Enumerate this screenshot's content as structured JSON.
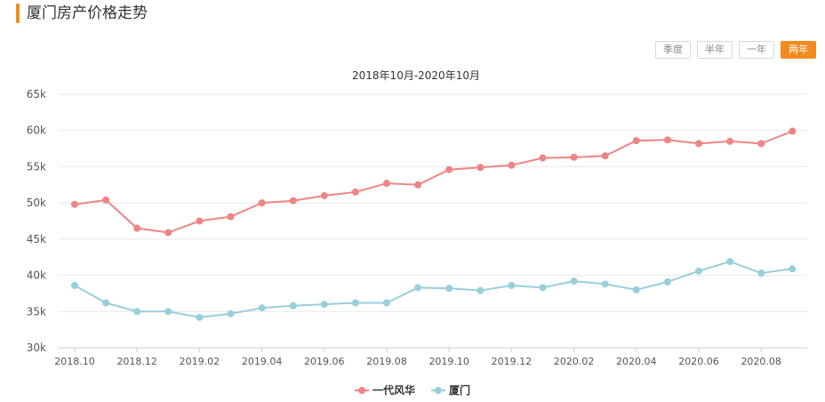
{
  "header": {
    "title": "厦门房产价格走势"
  },
  "range_buttons": [
    {
      "label": "季度",
      "active": false
    },
    {
      "label": "半年",
      "active": false
    },
    {
      "label": "一年",
      "active": false
    },
    {
      "label": "两年",
      "active": true
    }
  ],
  "colors": {
    "accent": "#f08c1e",
    "series1": "#ee8585",
    "series2": "#98cfdc",
    "grid": "#e8e8e8",
    "axis": "#cccccc"
  },
  "chart_data": {
    "type": "line",
    "title": "2018年10月-2020年10月",
    "xlabel": "",
    "ylabel": "",
    "x_tick_labels": [
      "2018.10",
      "2018.12",
      "2019.02",
      "2019.04",
      "2019.06",
      "2019.08",
      "2019.10",
      "2019.12",
      "2020.02",
      "2020.04",
      "2020.06",
      "2020.08"
    ],
    "y_tick_labels": [
      "30k",
      "35k",
      "40k",
      "45k",
      "50k",
      "55k",
      "60k",
      "65k"
    ],
    "ylim": [
      30000,
      65000
    ],
    "x": [
      "2018.10",
      "2018.11",
      "2018.12",
      "2019.01",
      "2019.02",
      "2019.03",
      "2019.04",
      "2019.05",
      "2019.06",
      "2019.07",
      "2019.08",
      "2019.09",
      "2019.10",
      "2019.11",
      "2019.12",
      "2020.01",
      "2020.02",
      "2020.03",
      "2020.04",
      "2020.05",
      "2020.06",
      "2020.07",
      "2020.08",
      "2020.09"
    ],
    "series": [
      {
        "name": "一代风华",
        "values": [
          49800,
          50400,
          46500,
          45900,
          47500,
          48100,
          50000,
          50300,
          51000,
          51500,
          52700,
          52500,
          54600,
          54900,
          55200,
          56200,
          56300,
          56500,
          58600,
          58700,
          58200,
          58500,
          58200,
          59900
        ]
      },
      {
        "name": "厦门",
        "values": [
          38600,
          36200,
          35000,
          35000,
          34200,
          34700,
          35500,
          35800,
          36000,
          36200,
          36200,
          38300,
          38200,
          37900,
          38600,
          38300,
          39200,
          38800,
          38000,
          39100,
          40600,
          41900,
          40300,
          40900
        ]
      }
    ],
    "grid": true,
    "legend_position": "bottom-center"
  }
}
